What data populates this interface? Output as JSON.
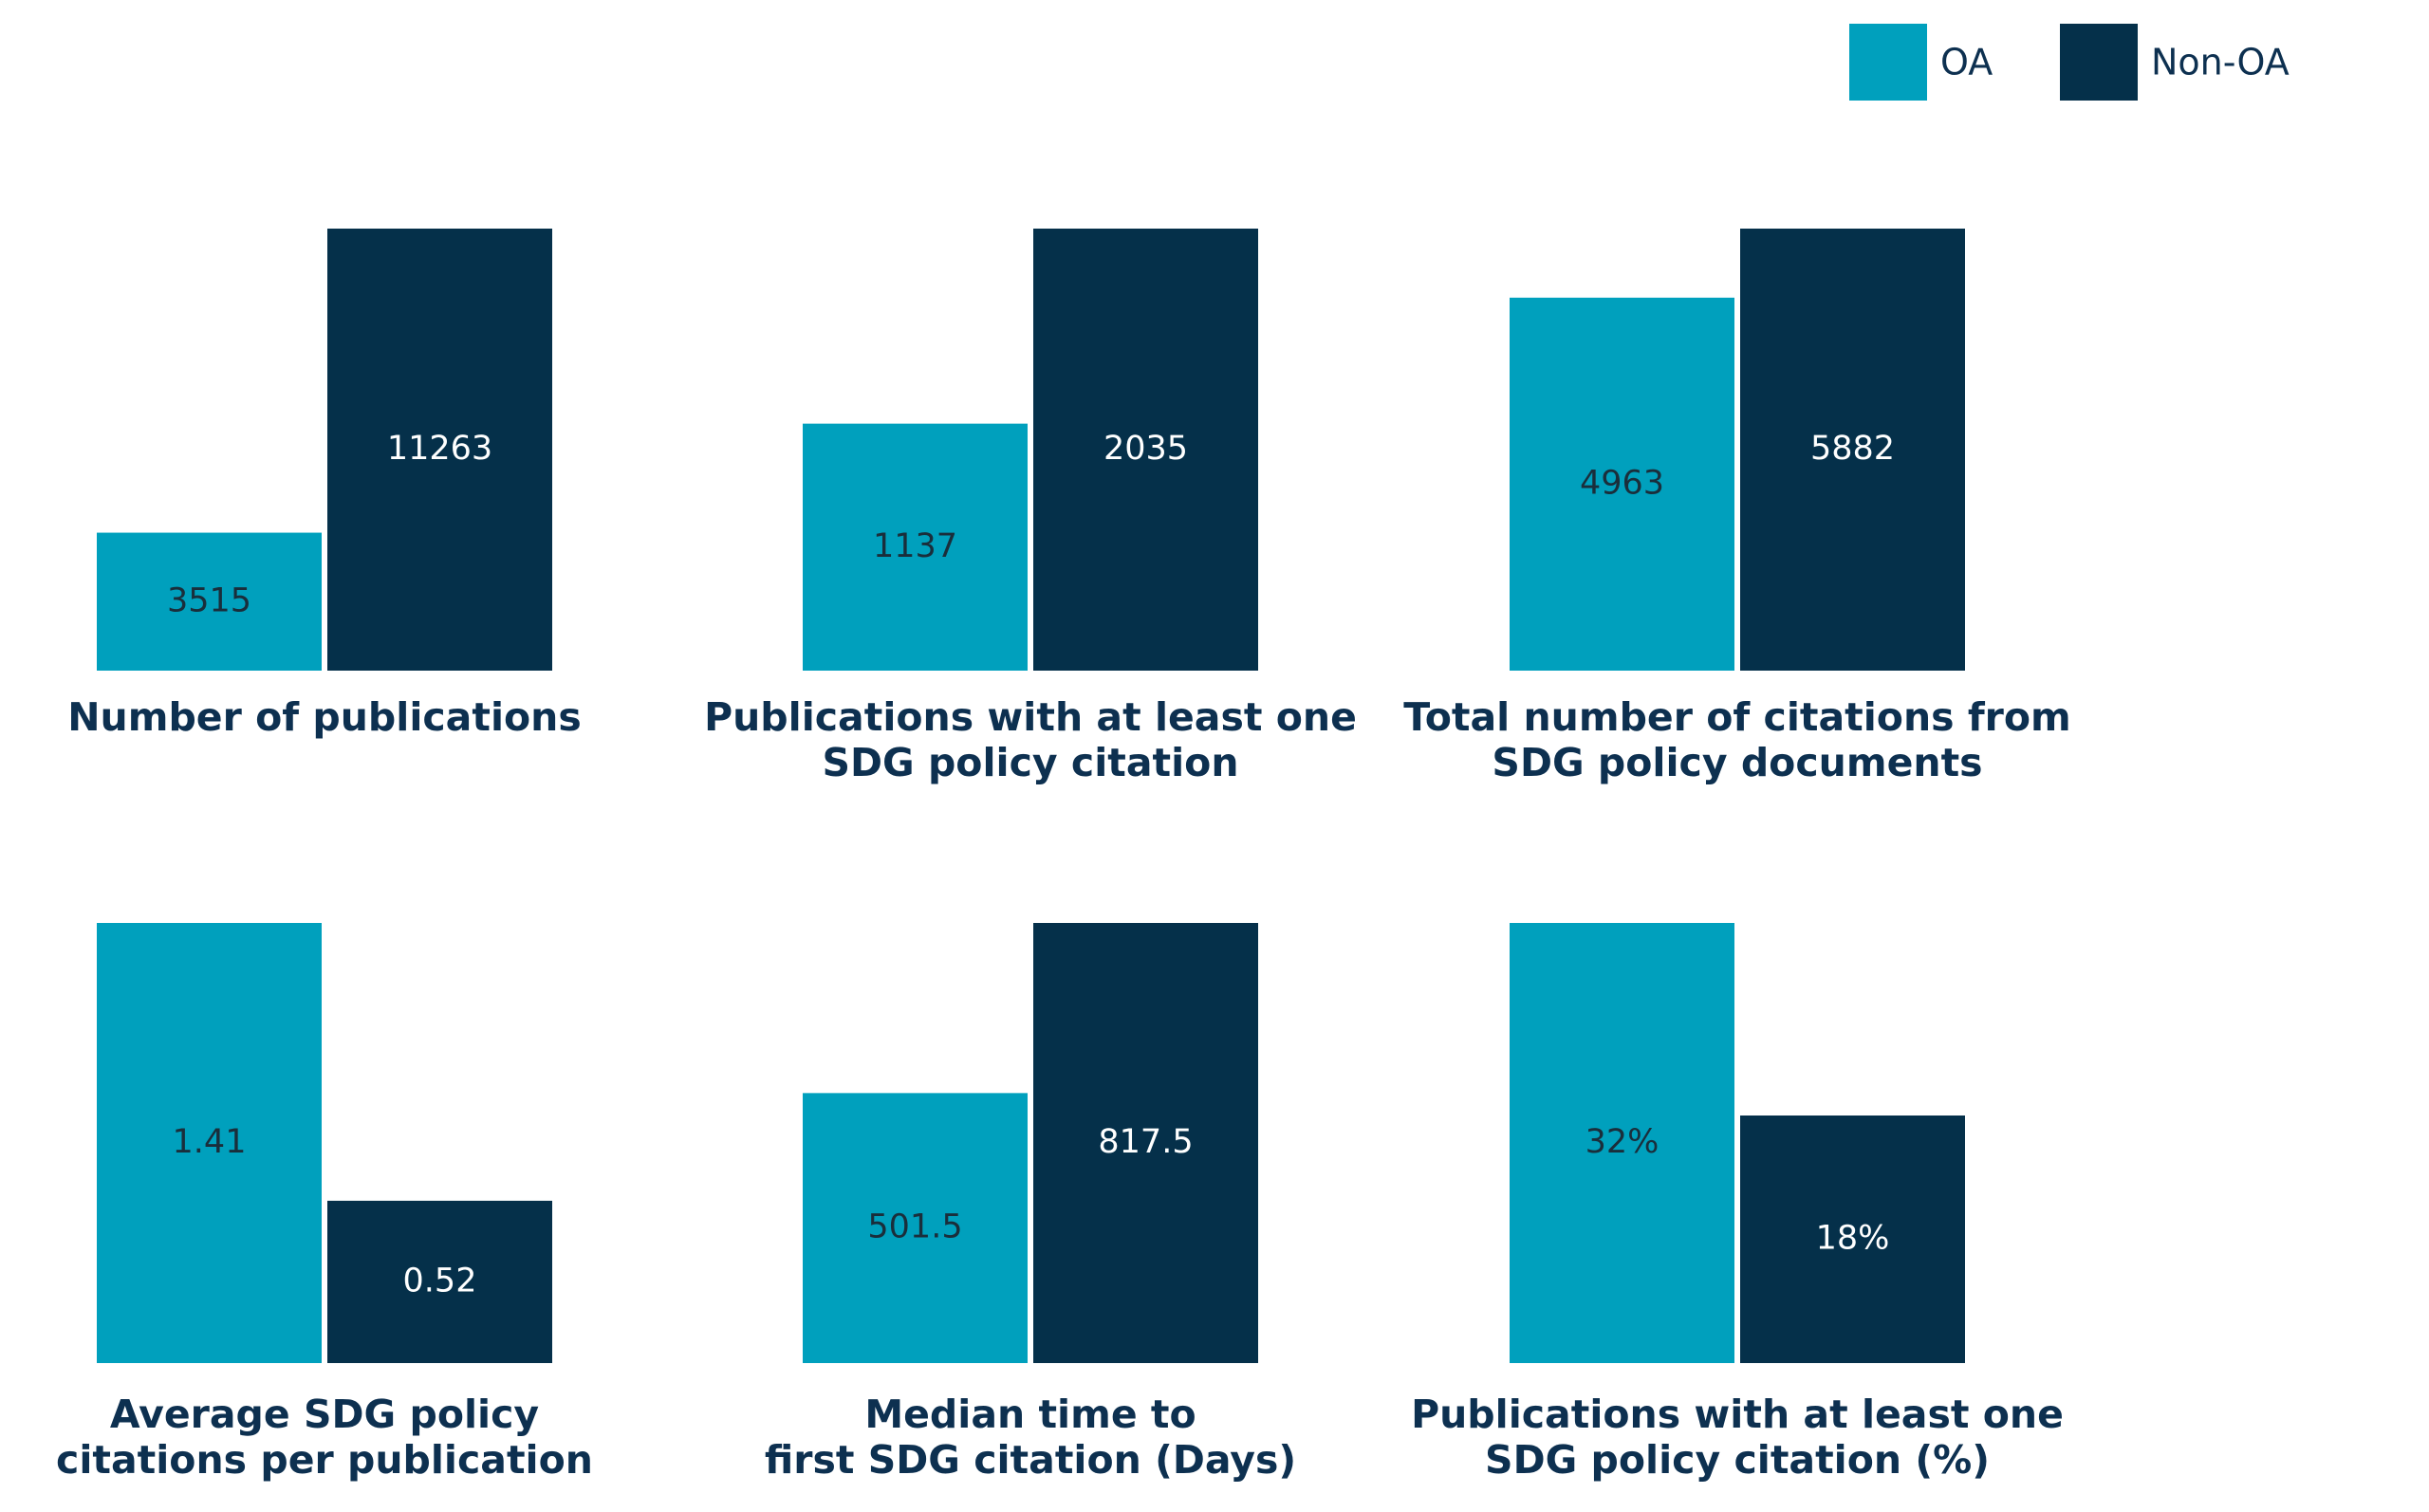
{
  "legend": [
    {
      "name": "OA",
      "color": "#00a0bd"
    },
    {
      "name": "Non-OA",
      "color": "#05304a"
    }
  ],
  "chart_data": [
    {
      "type": "bar",
      "title": "Number of publications",
      "values": [
        3515,
        11263
      ]
    },
    {
      "type": "bar",
      "title": "Publications with at least one\nSDG policy citation",
      "values": [
        1137,
        2035
      ]
    },
    {
      "type": "bar",
      "title": "Total number of citations from\nSDG policy documents",
      "values": [
        4963,
        5882
      ]
    },
    {
      "type": "bar",
      "title": "Average SDG policy\ncitations per publication",
      "values": [
        1.41,
        0.52
      ]
    },
    {
      "type": "bar",
      "title": "Median time to\nfirst SDG citation (Days)",
      "values": [
        501.5,
        817.5
      ]
    },
    {
      "type": "bar",
      "title": "Publications with at least one\nSDG policy citation (%)",
      "values": [
        32,
        18
      ],
      "value_labels": [
        "32%",
        "18%"
      ]
    }
  ]
}
